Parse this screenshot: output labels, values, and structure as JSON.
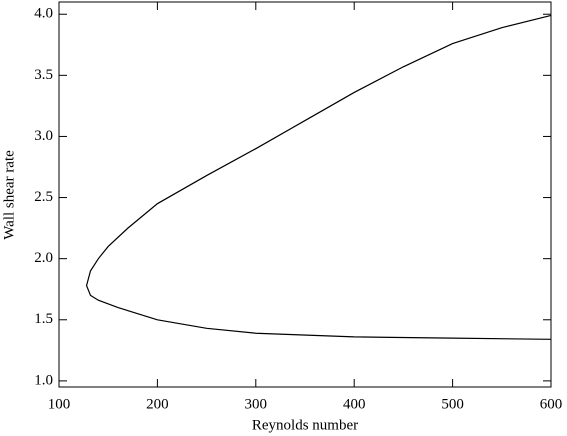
{
  "chart_data": {
    "type": "line",
    "x_label": "Reynolds number",
    "y_label": "Wall shear rate",
    "x": [
      600,
      550,
      500,
      450,
      400,
      350,
      300,
      250,
      200,
      170,
      150,
      140,
      132,
      128,
      132,
      140,
      160,
      200,
      250,
      300,
      400,
      500,
      600
    ],
    "series": [
      {
        "color": "#000000",
        "values": [
          3.99,
          3.89,
          3.76,
          3.57,
          3.36,
          3.13,
          2.9,
          2.68,
          2.45,
          2.25,
          2.1,
          2.0,
          1.9,
          1.78,
          1.7,
          1.66,
          1.6,
          1.5,
          1.43,
          1.39,
          1.36,
          1.35,
          1.34
        ]
      }
    ],
    "xlim": [
      100,
      600
    ],
    "xticks": [
      100,
      200,
      300,
      400,
      500,
      600
    ],
    "ylim": [
      0.95,
      4.1
    ],
    "yticks": [
      {
        "value": 1,
        "label": "1.0"
      },
      1.5,
      {
        "value": 2,
        "label": "2.0"
      },
      2.5,
      {
        "value": 3,
        "label": "3.0"
      },
      3.5,
      {
        "value": 4,
        "label": "4.0"
      }
    ]
  }
}
